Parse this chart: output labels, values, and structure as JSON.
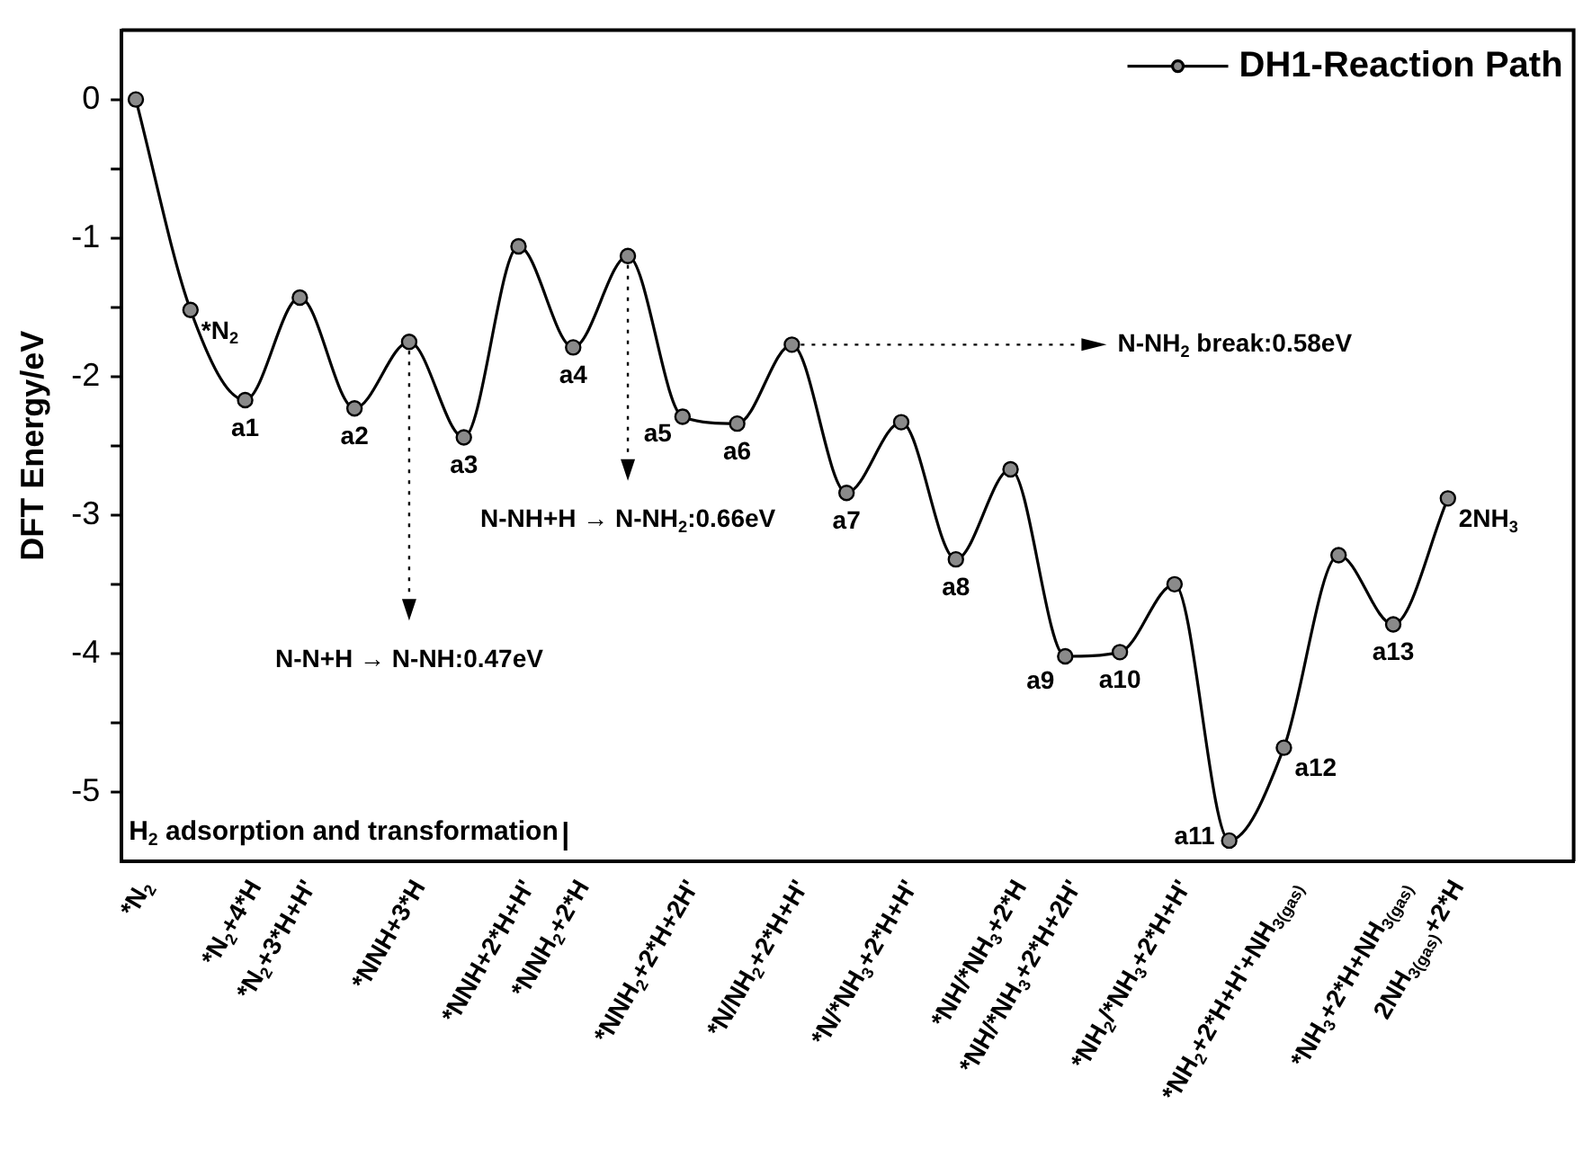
{
  "chart_data": {
    "type": "line",
    "ylabel": "DFT Energy/eV",
    "legend": "top right",
    "marker": "circle",
    "line_style": "solid",
    "categories": [
      "*N$_{2}$",
      null,
      "*N$_{2}$+4*H",
      "*N$_{2}$+3*H+H'",
      null,
      "*NNH+3*H",
      null,
      "*NNH+2*H+H'",
      "*NNH$_{2}$+2*H",
      null,
      "*NNH$_{2}$+2*H+2H'",
      null,
      "*N/NH$_{2}$+2*H+H'",
      null,
      "*N/*NH$_{3}$+2*H+H'",
      null,
      "*NH/*NH$_{3}$+2*H",
      "*NH/*NH$_{3}$+2*H+2H'",
      null,
      "*NH$_{2}$/*NH$_{3}$+2*H+H'",
      null,
      "*NH$_{2}$+2*H+H'+NH$_{3(gas)}$",
      null,
      "*NH$_{3}$+2*H+NH$_{3(gas)}$",
      "2NH$_{3(gas)}$+2*H"
    ],
    "ylim": [
      -5.5,
      0.5
    ],
    "yticks": [
      0,
      {
        "value": -0.5,
        "label": null
      },
      -1,
      {
        "value": -1.5,
        "label": null
      },
      -2,
      {
        "value": -2.5,
        "label": null
      },
      -3,
      {
        "value": -3.5,
        "label": null
      },
      -4,
      {
        "value": -4.5,
        "label": null
      },
      -5
    ],
    "series": [
      {
        "name": "DH1-Reaction Path",
        "color": "#000000",
        "values": [
          0,
          -1.52,
          -2.17,
          -1.43,
          -2.23,
          -1.75,
          -2.44,
          -1.06,
          -1.79,
          -1.13,
          -2.29,
          -2.34,
          -1.77,
          -2.84,
          -2.33,
          -3.32,
          -2.67,
          -4.02,
          -3.99,
          -3.5,
          -5.35,
          -4.68,
          -3.29,
          -3.79,
          -2.88
        ]
      }
    ],
    "annotations": [
      "*N$_{2}$",
      "a1",
      "a2",
      "a3",
      "a4",
      "a5",
      "a6",
      "a7",
      "a8",
      "a9",
      "a10",
      "a11",
      "a12",
      "a13",
      "2NH$_{3}$",
      "N-N+H → N-NH:0.47eV",
      "N-NH+H → N-NH$_{2}$:0.66eV",
      "N-NH$_{2}$ break:0.58eV",
      "H$_{2}$ adsorption and transformation"
    ]
  }
}
